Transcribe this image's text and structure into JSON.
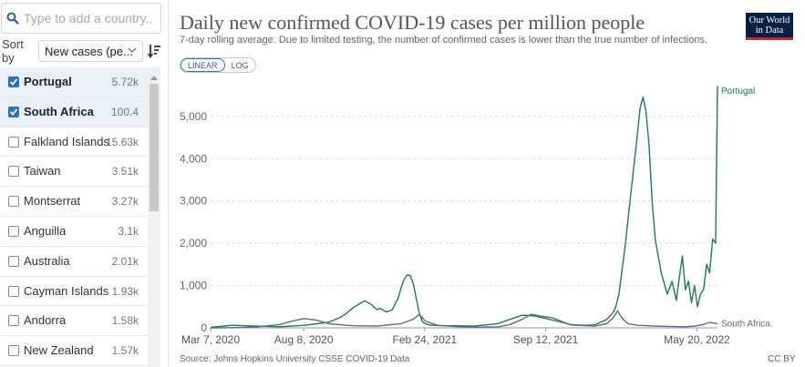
{
  "search": {
    "placeholder": "Type to add a country..."
  },
  "sort": {
    "label": "Sort by",
    "selected": "New cases (pe..."
  },
  "countries": [
    {
      "name": "Portugal",
      "value": "5.72k",
      "selected": true
    },
    {
      "name": "South Africa",
      "value": "100.4",
      "selected": true
    },
    {
      "name": "Falkland Islands",
      "value": "15.63k",
      "selected": false
    },
    {
      "name": "Taiwan",
      "value": "3.51k",
      "selected": false
    },
    {
      "name": "Montserrat",
      "value": "3.27k",
      "selected": false
    },
    {
      "name": "Anguilla",
      "value": "3.1k",
      "selected": false
    },
    {
      "name": "Australia",
      "value": "2.01k",
      "selected": false
    },
    {
      "name": "Cayman Islands",
      "value": "1.93k",
      "selected": false
    },
    {
      "name": "Andorra",
      "value": "1.58k",
      "selected": false
    },
    {
      "name": "New Zealand",
      "value": "1.57k",
      "selected": false
    }
  ],
  "logo": {
    "line1": "Our World",
    "line2": "in Data"
  },
  "scale": {
    "linear": "LINEAR",
    "log": "LOG"
  },
  "source": "Source: Johns Hopkins University CSSE COVID-19 Data",
  "license": "CC BY",
  "colors": {
    "portugal": "#1b7f4a",
    "south_africa": "#5f6a8c",
    "accent": "#2a6ec9"
  },
  "chart_data": {
    "type": "line",
    "title": "Daily new confirmed COVID-19 cases per million people",
    "subtitle": "7-day rolling average. Due to limited testing, the number of confirmed cases is lower than the true number of infections.",
    "xlabel": "",
    "ylabel": "",
    "x_unit": "days since Jan 22, 2020",
    "xlim": [
      45,
      883
    ],
    "ylim": [
      0,
      5600
    ],
    "yticks": [
      0,
      1000,
      2000,
      3000,
      4000,
      5000
    ],
    "ytick_labels": [
      "0",
      "1,000",
      "2,000",
      "3,000",
      "4,000",
      "5,000"
    ],
    "xticks": [
      45,
      199,
      399,
      599,
      849
    ],
    "xtick_labels": [
      "Mar 7, 2020",
      "Aug 8, 2020",
      "Feb 24, 2021",
      "Sep 12, 2021",
      "May 20, 2022"
    ],
    "series": [
      {
        "name": "Portugal",
        "label": "Portugal",
        "x": [
          45,
          80,
          120,
          160,
          200,
          240,
          260,
          270,
          280,
          290,
          300,
          310,
          320,
          325,
          330,
          335,
          345,
          355,
          360,
          365,
          370,
          375,
          380,
          385,
          390,
          395,
          400,
          405,
          410,
          420,
          430,
          450,
          480,
          520,
          540,
          560,
          580,
          600,
          620,
          640,
          660,
          680,
          700,
          710,
          715,
          720,
          730,
          740,
          750,
          755,
          760,
          765,
          770,
          775,
          780,
          790,
          800,
          808,
          815,
          820,
          825,
          830,
          835,
          840,
          845,
          850,
          855,
          860,
          865,
          870,
          875,
          880,
          883
        ],
        "values": [
          10,
          60,
          40,
          25,
          60,
          130,
          250,
          350,
          470,
          560,
          640,
          560,
          430,
          460,
          420,
          380,
          420,
          700,
          950,
          1150,
          1250,
          1240,
          1050,
          700,
          350,
          150,
          100,
          75,
          60,
          55,
          50,
          50,
          40,
          100,
          200,
          300,
          280,
          220,
          150,
          80,
          60,
          70,
          200,
          350,
          500,
          800,
          1900,
          3200,
          4500,
          5200,
          5460,
          5100,
          4300,
          3000,
          2100,
          1300,
          800,
          1100,
          650,
          1200,
          1700,
          900,
          1100,
          600,
          1000,
          500,
          800,
          900,
          1500,
          1300,
          2100,
          2000,
          5720
        ]
      },
      {
        "name": "South Africa",
        "label": "South Africa",
        "x": [
          45,
          80,
          120,
          160,
          180,
          200,
          220,
          240,
          280,
          320,
          360,
          380,
          390,
          400,
          420,
          450,
          480,
          520,
          540,
          560,
          575,
          590,
          610,
          640,
          680,
          700,
          710,
          718,
          725,
          735,
          750,
          780,
          810,
          830,
          850,
          860,
          870,
          883
        ],
        "values": [
          0,
          5,
          20,
          80,
          160,
          220,
          180,
          100,
          50,
          40,
          100,
          200,
          320,
          160,
          60,
          30,
          20,
          20,
          80,
          200,
          320,
          280,
          240,
          70,
          40,
          100,
          230,
          400,
          230,
          100,
          60,
          40,
          30,
          25,
          50,
          80,
          130,
          100
        ]
      }
    ]
  }
}
